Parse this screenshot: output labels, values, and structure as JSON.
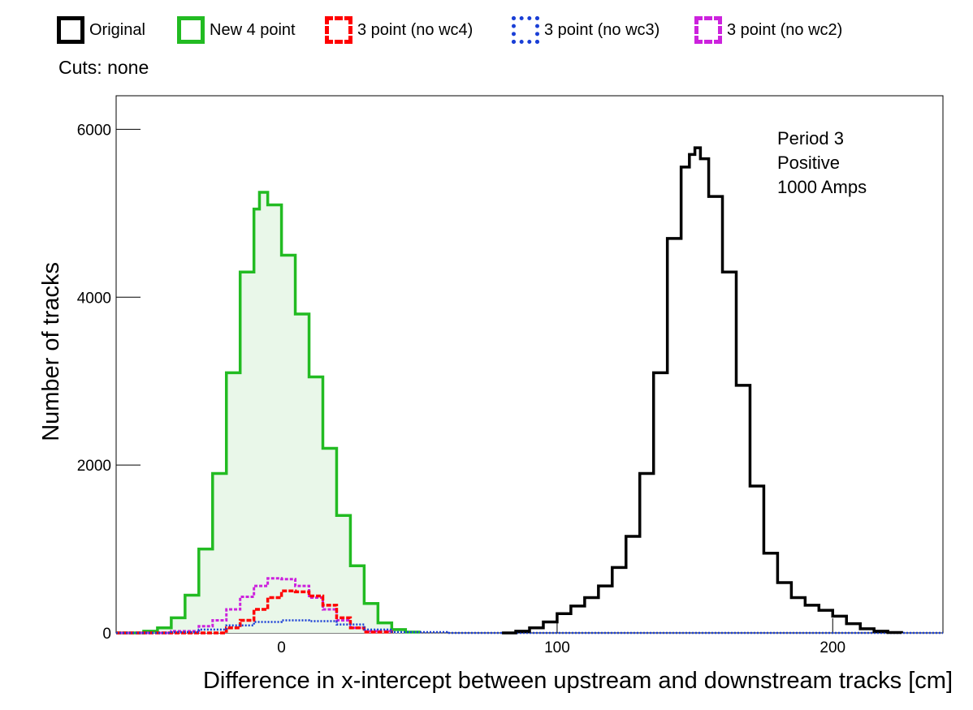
{
  "legend": {
    "items": [
      {
        "label": "Original",
        "color": "#000000",
        "style": "solid"
      },
      {
        "label": "New 4 point",
        "color": "#22bb22",
        "style": "solid"
      },
      {
        "label": "3 point (no wc4)",
        "color": "#ff0000",
        "style": "dashed"
      },
      {
        "label": "3 point (no wc3)",
        "color": "#1a3fd6",
        "style": "dotted"
      },
      {
        "label": "3 point (no wc2)",
        "color": "#cc22dd",
        "style": "dashed"
      }
    ]
  },
  "cuts_text": "Cuts: none",
  "chart_data": {
    "type": "line",
    "title": "",
    "xlabel": "Difference in x-intercept between upstream and downstream tracks [cm]",
    "ylabel": "Number of tracks",
    "xlim": [
      -60,
      240
    ],
    "ylim": [
      0,
      6400
    ],
    "xticks": [
      0,
      100,
      200
    ],
    "yticks": [
      0,
      2000,
      4000,
      6000
    ],
    "grid": false,
    "legend_position": "top",
    "annotation": [
      "Period 3",
      "Positive",
      "1000 Amps"
    ],
    "series": [
      {
        "name": "Original",
        "color": "#000000",
        "x": [
          80,
          85,
          90,
          95,
          100,
          105,
          110,
          115,
          120,
          125,
          130,
          135,
          140,
          145,
          148,
          150,
          152,
          155,
          160,
          165,
          170,
          175,
          180,
          185,
          190,
          195,
          200,
          205,
          210,
          215,
          220,
          225
        ],
        "y": [
          0,
          20,
          60,
          130,
          230,
          320,
          420,
          560,
          780,
          1150,
          1900,
          3100,
          4700,
          5550,
          5700,
          5780,
          5650,
          5200,
          4300,
          2950,
          1750,
          950,
          600,
          420,
          330,
          270,
          200,
          110,
          50,
          20,
          5,
          0
        ]
      },
      {
        "name": "New 4 point",
        "color": "#22bb22",
        "x": [
          -60,
          -50,
          -45,
          -40,
          -35,
          -30,
          -25,
          -20,
          -15,
          -10,
          -8,
          -5,
          0,
          5,
          10,
          15,
          20,
          25,
          30,
          35,
          40,
          45,
          50
        ],
        "y": [
          0,
          20,
          60,
          180,
          450,
          1000,
          1900,
          3100,
          4300,
          5050,
          5250,
          5100,
          4500,
          3800,
          3050,
          2200,
          1400,
          800,
          350,
          120,
          40,
          10,
          0
        ]
      },
      {
        "name": "3 point (no wc4)",
        "color": "#ff0000",
        "x": [
          -60,
          -30,
          -20,
          -15,
          -10,
          -5,
          0,
          5,
          10,
          15,
          20,
          25,
          30,
          40
        ],
        "y": [
          0,
          0,
          60,
          150,
          280,
          420,
          500,
          490,
          440,
          330,
          180,
          60,
          10,
          0
        ]
      },
      {
        "name": "3 point (no wc3)",
        "color": "#1a3fd6",
        "x": [
          -60,
          -40,
          -30,
          -20,
          -10,
          0,
          10,
          20,
          30,
          40,
          60,
          240
        ],
        "y": [
          0,
          10,
          40,
          90,
          130,
          150,
          140,
          100,
          40,
          10,
          0,
          0
        ]
      },
      {
        "name": "3 point (no wc2)",
        "color": "#cc22dd",
        "x": [
          -60,
          -40,
          -30,
          -25,
          -20,
          -15,
          -10,
          -5,
          0,
          5,
          10,
          15,
          20,
          25,
          30,
          40
        ],
        "y": [
          0,
          20,
          80,
          150,
          280,
          430,
          560,
          650,
          640,
          560,
          420,
          280,
          150,
          60,
          20,
          0
        ]
      }
    ]
  }
}
